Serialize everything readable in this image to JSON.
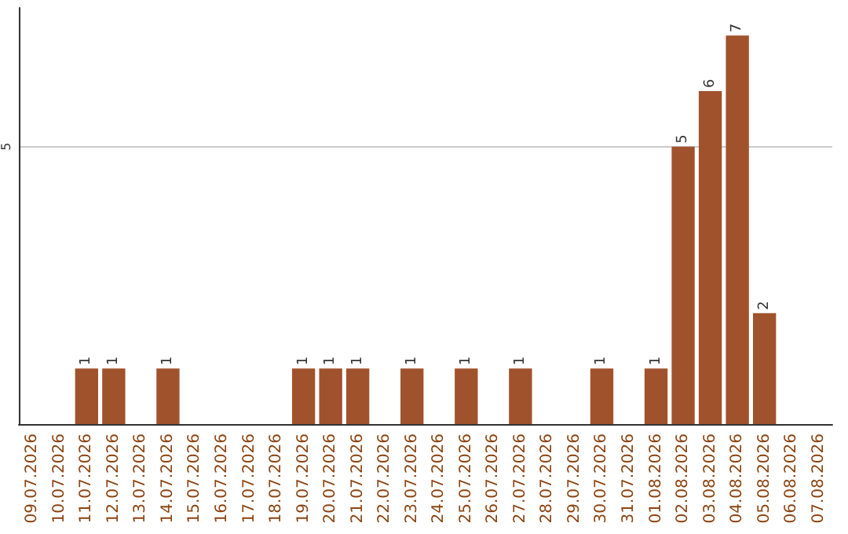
{
  "chart_data": {
    "type": "bar",
    "categories": [
      "09.07.2026",
      "10.07.2026",
      "11.07.2026",
      "12.07.2026",
      "13.07.2026",
      "14.07.2026",
      "15.07.2026",
      "16.07.2026",
      "17.07.2026",
      "18.07.2026",
      "19.07.2026",
      "20.07.2026",
      "21.07.2026",
      "22.07.2026",
      "23.07.2026",
      "24.07.2026",
      "25.07.2026",
      "26.07.2026",
      "27.07.2026",
      "28.07.2026",
      "29.07.2026",
      "30.07.2026",
      "31.07.2026",
      "01.08.2026",
      "02.08.2026",
      "03.08.2026",
      "04.08.2026",
      "05.08.2026",
      "06.08.2026",
      "07.08.2026"
    ],
    "values": [
      0,
      0,
      1,
      1,
      0,
      1,
      0,
      0,
      0,
      0,
      1,
      1,
      1,
      0,
      1,
      0,
      1,
      0,
      1,
      0,
      0,
      1,
      0,
      1,
      5,
      6,
      7,
      2,
      0,
      0
    ],
    "value_labels": [
      null,
      null,
      "1",
      "1",
      null,
      "1",
      null,
      null,
      null,
      null,
      "1",
      "1",
      "1",
      null,
      "1",
      null,
      "1",
      null,
      "1",
      null,
      null,
      "1",
      null,
      "1",
      "5",
      "6",
      "7",
      "2",
      null,
      null
    ],
    "color": "#a0522d",
    "ylim": [
      0,
      7.5
    ],
    "yticks": [
      5
    ],
    "grid": "y"
  }
}
